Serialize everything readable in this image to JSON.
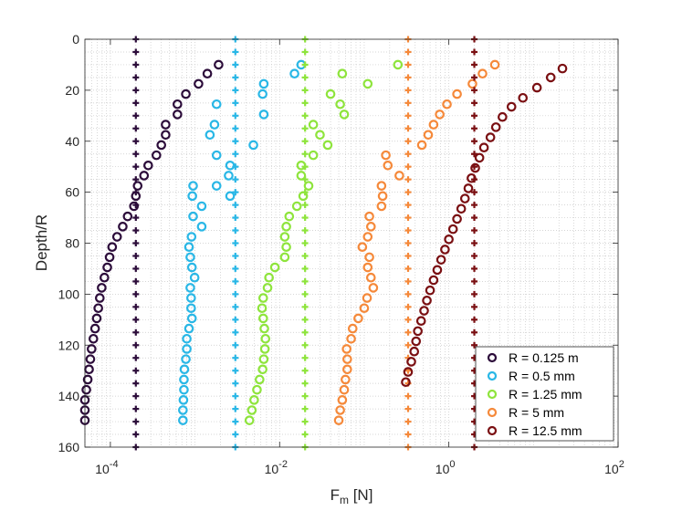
{
  "chart_data": {
    "type": "scatter",
    "xscale": "log",
    "xlabel": "F_m [N]",
    "xlabel_main": "F",
    "xlabel_sub": "m",
    "xlabel_unit": " [N]",
    "ylabel": "Depth/R",
    "xlim": [
      5e-05,
      100
    ],
    "ylim": [
      0,
      160
    ],
    "y_reversed": true,
    "grid": "minor-dotted",
    "x_ticks": [
      {
        "value": 0.0001,
        "base": "10",
        "exp": "-4"
      },
      {
        "value": 0.01,
        "base": "10",
        "exp": "-2"
      },
      {
        "value": 1,
        "base": "10",
        "exp": "0"
      },
      {
        "value": 100,
        "base": "10",
        "exp": "2"
      }
    ],
    "y_ticks": [
      "0",
      "20",
      "40",
      "60",
      "80",
      "100",
      "120",
      "140",
      "160"
    ],
    "legend_position": "bottom-right",
    "series": [
      {
        "name": "R = 0.125 m",
        "color": "#2c0c3a",
        "marker": "circle",
        "points": [
          [
            0.0019,
            10
          ],
          [
            0.0014,
            13.5
          ],
          [
            0.0011,
            17.5
          ],
          [
            0.00078,
            21.5
          ],
          [
            0.00062,
            25.5
          ],
          [
            0.00062,
            29.5
          ],
          [
            0.00045,
            33.5
          ],
          [
            0.00045,
            37.5
          ],
          [
            0.0004,
            41.5
          ],
          [
            0.00035,
            45.5
          ],
          [
            0.00028,
            49.5
          ],
          [
            0.00025,
            53.5
          ],
          [
            0.00021,
            57.5
          ],
          [
            0.0002,
            61.5
          ],
          [
            0.00019,
            65.5
          ],
          [
            0.00016,
            69.5
          ],
          [
            0.00014,
            73.5
          ],
          [
            0.00012,
            77.5
          ],
          [
            0.000105,
            81.5
          ],
          [
            9.8e-05,
            85.5
          ],
          [
            9.2e-05,
            89.5
          ],
          [
            8.5e-05,
            93.5
          ],
          [
            7.9e-05,
            97.5
          ],
          [
            7.5e-05,
            101.5
          ],
          [
            7.2e-05,
            105.5
          ],
          [
            6.9e-05,
            109.5
          ],
          [
            6.6e-05,
            113.5
          ],
          [
            6.3e-05,
            117.5
          ],
          [
            6e-05,
            121.5
          ],
          [
            5.8e-05,
            125.5
          ],
          [
            5.6e-05,
            129.5
          ],
          [
            5.4e-05,
            133.5
          ],
          [
            5.2e-05,
            137.5
          ],
          [
            5e-05,
            141.5
          ],
          [
            5e-05,
            145.5
          ],
          [
            5e-05,
            149.5
          ]
        ],
        "reference_x": 0.0002
      },
      {
        "name": "R = 0.5 mm",
        "color": "#29b7e6",
        "marker": "circle",
        "points": [
          [
            0.018,
            10
          ],
          [
            0.015,
            13.5
          ],
          [
            0.0065,
            17.5
          ],
          [
            0.0063,
            21.5
          ],
          [
            0.0018,
            25.5
          ],
          [
            0.0065,
            29.5
          ],
          [
            0.0017,
            33.5
          ],
          [
            0.0015,
            37.5
          ],
          [
            0.0049,
            41.5
          ],
          [
            0.0018,
            45.5
          ],
          [
            0.0026,
            49.5
          ],
          [
            0.0025,
            53.5
          ],
          [
            0.00095,
            57.5
          ],
          [
            0.0018,
            57.5
          ],
          [
            0.0026,
            61.5
          ],
          [
            0.00093,
            61.5
          ],
          [
            0.0012,
            65.5
          ],
          [
            0.00095,
            69.5
          ],
          [
            0.0012,
            73.5
          ],
          [
            0.00091,
            77.5
          ],
          [
            0.00085,
            81.5
          ],
          [
            0.00088,
            85.5
          ],
          [
            0.00092,
            89.5
          ],
          [
            0.00099,
            93.5
          ],
          [
            0.00088,
            97.5
          ],
          [
            0.0009,
            101.5
          ],
          [
            0.0009,
            105.5
          ],
          [
            0.00092,
            109.5
          ],
          [
            0.00085,
            113.5
          ],
          [
            0.0008,
            117.5
          ],
          [
            0.0008,
            121.5
          ],
          [
            0.00078,
            125.5
          ],
          [
            0.00075,
            129.5
          ],
          [
            0.00074,
            133.5
          ],
          [
            0.00074,
            137.5
          ],
          [
            0.00073,
            141.5
          ],
          [
            0.00072,
            145.5
          ],
          [
            0.00072,
            149.5
          ]
        ],
        "reference_x": 0.003
      },
      {
        "name": "R = 1.25 mm",
        "color": "#8ee43c",
        "marker": "circle",
        "points": [
          [
            0.25,
            10
          ],
          [
            0.055,
            13.5
          ],
          [
            0.11,
            17.5
          ],
          [
            0.04,
            21.5
          ],
          [
            0.052,
            25.5
          ],
          [
            0.058,
            29.5
          ],
          [
            0.025,
            33.5
          ],
          [
            0.03,
            37.5
          ],
          [
            0.037,
            41.5
          ],
          [
            0.025,
            45.5
          ],
          [
            0.018,
            49.5
          ],
          [
            0.018,
            53.5
          ],
          [
            0.022,
            57.5
          ],
          [
            0.019,
            61.5
          ],
          [
            0.016,
            65.5
          ],
          [
            0.013,
            69.5
          ],
          [
            0.012,
            73.5
          ],
          [
            0.0115,
            77.5
          ],
          [
            0.012,
            81.5
          ],
          [
            0.0115,
            85.5
          ],
          [
            0.0088,
            89.5
          ],
          [
            0.0075,
            93.5
          ],
          [
            0.0072,
            97.5
          ],
          [
            0.0064,
            101.5
          ],
          [
            0.0062,
            105.5
          ],
          [
            0.0064,
            109.5
          ],
          [
            0.0066,
            113.5
          ],
          [
            0.0068,
            117.5
          ],
          [
            0.0067,
            121.5
          ],
          [
            0.0065,
            125.5
          ],
          [
            0.0063,
            129.5
          ],
          [
            0.0058,
            133.5
          ],
          [
            0.0054,
            137.5
          ],
          [
            0.005,
            141.5
          ],
          [
            0.0047,
            145.5
          ],
          [
            0.0044,
            149.5
          ]
        ],
        "reference_x": 0.02
      },
      {
        "name": "R = 5 mm",
        "color": "#f5893a",
        "marker": "circle",
        "points": [
          [
            3.5,
            10
          ],
          [
            2.5,
            13.5
          ],
          [
            1.9,
            17.5
          ],
          [
            1.25,
            21.5
          ],
          [
            0.95,
            25.5
          ],
          [
            0.78,
            29.5
          ],
          [
            0.66,
            33.5
          ],
          [
            0.57,
            37.5
          ],
          [
            0.48,
            41.5
          ],
          [
            0.18,
            45.5
          ],
          [
            0.19,
            49.5
          ],
          [
            0.26,
            53.5
          ],
          [
            0.16,
            57.5
          ],
          [
            0.165,
            61.5
          ],
          [
            0.16,
            65.5
          ],
          [
            0.115,
            69.5
          ],
          [
            0.12,
            73.5
          ],
          [
            0.11,
            77.5
          ],
          [
            0.095,
            81.5
          ],
          [
            0.115,
            85.5
          ],
          [
            0.11,
            89.5
          ],
          [
            0.12,
            93.5
          ],
          [
            0.128,
            97.5
          ],
          [
            0.108,
            101.5
          ],
          [
            0.1,
            105.5
          ],
          [
            0.085,
            109.5
          ],
          [
            0.073,
            113.5
          ],
          [
            0.07,
            117.5
          ],
          [
            0.062,
            121.5
          ],
          [
            0.063,
            125.5
          ],
          [
            0.063,
            129.5
          ],
          [
            0.06,
            133.5
          ],
          [
            0.058,
            137.5
          ],
          [
            0.055,
            141.5
          ],
          [
            0.052,
            145.5
          ],
          [
            0.05,
            149.5
          ]
        ],
        "reference_x": 0.33
      },
      {
        "name": "R = 12.5 mm",
        "color": "#7a0f12",
        "marker": "circle",
        "points": [
          [
            22,
            11.5
          ],
          [
            16,
            15
          ],
          [
            11,
            19
          ],
          [
            7.5,
            23
          ],
          [
            5.5,
            26.5
          ],
          [
            4.3,
            30.5
          ],
          [
            3.6,
            34.5
          ],
          [
            3.1,
            38.5
          ],
          [
            2.6,
            42.5
          ],
          [
            2.3,
            46.5
          ],
          [
            2.05,
            50.5
          ],
          [
            1.85,
            54.5
          ],
          [
            1.7,
            58.5
          ],
          [
            1.55,
            62.5
          ],
          [
            1.4,
            66.5
          ],
          [
            1.25,
            70.5
          ],
          [
            1.12,
            74.5
          ],
          [
            1.0,
            78.5
          ],
          [
            0.9,
            82.5
          ],
          [
            0.81,
            86.5
          ],
          [
            0.73,
            90.5
          ],
          [
            0.66,
            94.5
          ],
          [
            0.6,
            98.5
          ],
          [
            0.55,
            102.5
          ],
          [
            0.51,
            106.5
          ],
          [
            0.47,
            110.5
          ],
          [
            0.43,
            114.5
          ],
          [
            0.41,
            118.5
          ],
          [
            0.39,
            122.5
          ],
          [
            0.36,
            126.5
          ],
          [
            0.33,
            130.5
          ],
          [
            0.31,
            134.5
          ]
        ],
        "reference_x": 2.0
      }
    ]
  }
}
